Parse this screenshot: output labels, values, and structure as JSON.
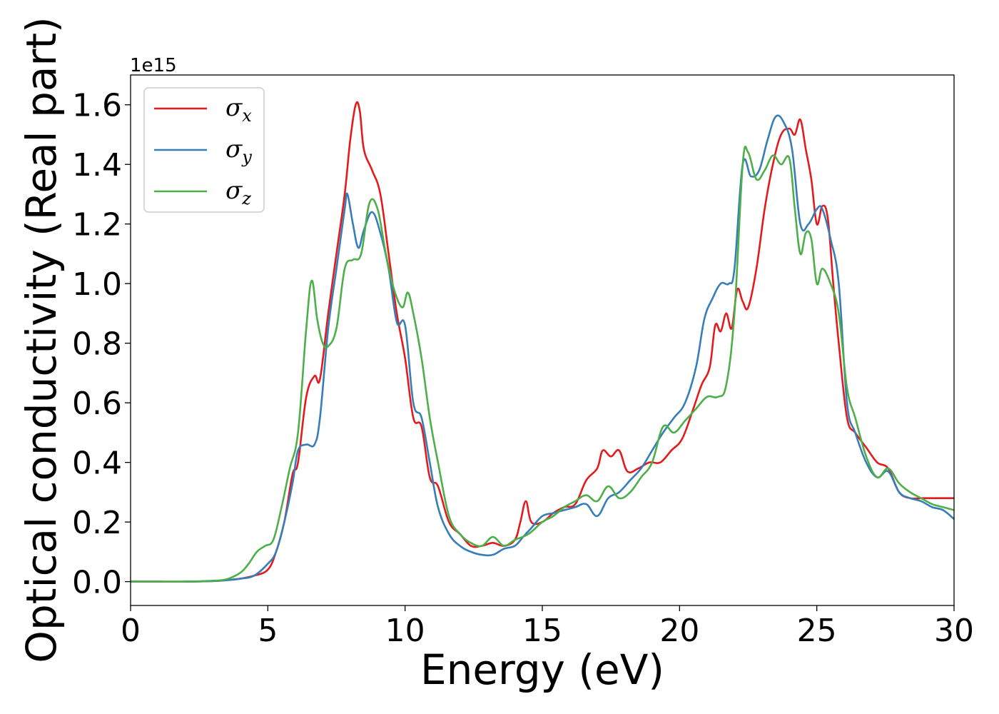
{
  "chart_data": {
    "type": "line",
    "xlabel": "Energy (eV)",
    "ylabel": "Optical conductivity (Real part)",
    "y_offset_label": "1e15",
    "xlim": [
      0,
      30
    ],
    "ylim": [
      -0.08,
      1.7
    ],
    "x_ticks": [
      0,
      5,
      10,
      15,
      20,
      25,
      30
    ],
    "y_ticks": [
      0.0,
      0.2,
      0.4,
      0.6,
      0.8,
      1.0,
      1.2,
      1.4,
      1.6
    ],
    "grid": false,
    "legend_position": "top-left",
    "series": [
      {
        "name": "σx",
        "legend_symbol": "σ",
        "legend_subscript": "x",
        "color": "#e41a1c",
        "x": [
          0,
          1,
          2,
          3,
          3.5,
          4,
          4.5,
          5,
          5.3,
          5.6,
          5.9,
          6.1,
          6.4,
          6.7,
          6.9,
          7.2,
          7.5,
          7.8,
          8.0,
          8.2,
          8.35,
          8.5,
          8.8,
          9.1,
          9.4,
          9.7,
          10.0,
          10.3,
          10.6,
          10.9,
          11.2,
          11.6,
          12.0,
          12.4,
          12.8,
          13.2,
          13.6,
          14.0,
          14.2,
          14.4,
          14.6,
          15.0,
          15.4,
          15.8,
          16.2,
          16.6,
          17.0,
          17.2,
          17.5,
          17.8,
          18.1,
          18.5,
          18.9,
          19.3,
          19.7,
          20.1,
          20.5,
          20.8,
          21.1,
          21.3,
          21.5,
          21.7,
          21.9,
          22.1,
          22.3,
          22.5,
          22.8,
          23.1,
          23.4,
          23.7,
          24.0,
          24.2,
          24.4,
          24.6,
          24.8,
          25.0,
          25.2,
          25.4,
          25.6,
          25.8,
          26.1,
          26.4,
          26.8,
          27.2,
          27.6,
          28.0,
          28.4,
          28.8,
          29.2,
          29.6,
          30.0
        ],
        "y": [
          0.0,
          0.0,
          0.0,
          0.002,
          0.005,
          0.01,
          0.02,
          0.04,
          0.1,
          0.2,
          0.36,
          0.4,
          0.62,
          0.69,
          0.68,
          0.9,
          1.1,
          1.3,
          1.48,
          1.6,
          1.58,
          1.45,
          1.38,
          1.3,
          1.1,
          0.9,
          0.75,
          0.55,
          0.52,
          0.35,
          0.32,
          0.2,
          0.16,
          0.12,
          0.12,
          0.13,
          0.12,
          0.14,
          0.2,
          0.27,
          0.2,
          0.2,
          0.23,
          0.25,
          0.26,
          0.34,
          0.38,
          0.44,
          0.42,
          0.44,
          0.37,
          0.38,
          0.4,
          0.4,
          0.44,
          0.48,
          0.58,
          0.66,
          0.72,
          0.86,
          0.84,
          0.9,
          0.85,
          0.98,
          0.94,
          0.92,
          1.05,
          1.25,
          1.4,
          1.5,
          1.52,
          1.5,
          1.55,
          1.45,
          1.35,
          1.2,
          1.26,
          1.22,
          1.0,
          0.8,
          0.55,
          0.5,
          0.45,
          0.4,
          0.38,
          0.3,
          0.28,
          0.28,
          0.28,
          0.28,
          0.28
        ]
      },
      {
        "name": "σy",
        "legend_symbol": "σ",
        "legend_subscript": "y",
        "color": "#377eb8",
        "x": [
          0,
          1,
          2,
          3,
          3.5,
          4,
          4.5,
          5,
          5.3,
          5.6,
          5.9,
          6.1,
          6.4,
          6.7,
          6.9,
          7.2,
          7.5,
          7.8,
          7.9,
          8.1,
          8.3,
          8.5,
          8.8,
          9.1,
          9.4,
          9.7,
          10.0,
          10.3,
          10.6,
          10.9,
          11.2,
          11.6,
          12.0,
          12.4,
          12.8,
          13.2,
          13.6,
          14.0,
          14.3,
          14.6,
          15.0,
          15.4,
          15.8,
          16.2,
          16.6,
          17.0,
          17.4,
          17.8,
          18.2,
          18.6,
          19.0,
          19.4,
          19.8,
          20.2,
          20.6,
          20.9,
          21.2,
          21.5,
          21.8,
          22.0,
          22.3,
          22.6,
          22.9,
          23.2,
          23.5,
          23.8,
          24.1,
          24.4,
          24.7,
          25.0,
          25.2,
          25.5,
          25.8,
          26.1,
          26.4,
          26.8,
          27.2,
          27.6,
          28.0,
          28.4,
          28.8,
          29.2,
          29.6,
          30.0
        ],
        "y": [
          0.0,
          0.0,
          0.0,
          0.002,
          0.005,
          0.01,
          0.02,
          0.06,
          0.1,
          0.2,
          0.33,
          0.44,
          0.46,
          0.46,
          0.55,
          0.85,
          1.05,
          1.25,
          1.3,
          1.2,
          1.12,
          1.18,
          1.24,
          1.17,
          1.05,
          0.87,
          0.86,
          0.6,
          0.55,
          0.4,
          0.25,
          0.16,
          0.12,
          0.1,
          0.09,
          0.09,
          0.11,
          0.12,
          0.15,
          0.18,
          0.22,
          0.23,
          0.24,
          0.25,
          0.26,
          0.22,
          0.28,
          0.3,
          0.34,
          0.38,
          0.44,
          0.5,
          0.55,
          0.6,
          0.72,
          0.88,
          0.95,
          1.0,
          1.0,
          1.05,
          1.4,
          1.36,
          1.38,
          1.48,
          1.56,
          1.54,
          1.45,
          1.2,
          1.2,
          1.25,
          1.25,
          1.15,
          1.0,
          0.6,
          0.5,
          0.4,
          0.35,
          0.37,
          0.3,
          0.28,
          0.27,
          0.25,
          0.24,
          0.21
        ]
      },
      {
        "name": "σz",
        "legend_symbol": "σ",
        "legend_subscript": "z",
        "color": "#4daf4a",
        "x": [
          0,
          1,
          2,
          3,
          3.5,
          4,
          4.3,
          4.6,
          4.9,
          5.2,
          5.5,
          5.8,
          6.1,
          6.4,
          6.6,
          6.8,
          7.0,
          7.2,
          7.5,
          7.8,
          8.1,
          8.4,
          8.7,
          9.0,
          9.3,
          9.6,
          9.9,
          10.1,
          10.3,
          10.6,
          10.9,
          11.2,
          11.6,
          12.0,
          12.4,
          12.8,
          13.2,
          13.6,
          14.0,
          14.5,
          15.0,
          15.4,
          15.8,
          16.2,
          16.6,
          17.0,
          17.4,
          17.8,
          18.2,
          18.6,
          19.0,
          19.4,
          19.8,
          20.2,
          20.6,
          21.0,
          21.4,
          21.7,
          22.0,
          22.3,
          22.5,
          22.8,
          23.1,
          23.4,
          23.7,
          24.0,
          24.2,
          24.4,
          24.6,
          24.8,
          25.0,
          25.2,
          25.5,
          25.8,
          26.1,
          26.4,
          26.8,
          27.2,
          27.6,
          28.0,
          28.4,
          28.8,
          29.2,
          29.6,
          30.0
        ],
        "y": [
          0.0,
          0.0,
          0.0,
          0.003,
          0.008,
          0.03,
          0.06,
          0.1,
          0.12,
          0.14,
          0.25,
          0.38,
          0.5,
          0.85,
          1.01,
          0.88,
          0.8,
          0.79,
          0.85,
          1.05,
          1.08,
          1.1,
          1.27,
          1.25,
          1.1,
          0.98,
          0.92,
          0.97,
          0.9,
          0.75,
          0.55,
          0.4,
          0.22,
          0.16,
          0.13,
          0.12,
          0.15,
          0.12,
          0.14,
          0.16,
          0.2,
          0.22,
          0.25,
          0.27,
          0.29,
          0.27,
          0.32,
          0.28,
          0.3,
          0.35,
          0.4,
          0.52,
          0.5,
          0.54,
          0.58,
          0.62,
          0.62,
          0.66,
          0.9,
          1.4,
          1.44,
          1.35,
          1.38,
          1.43,
          1.4,
          1.42,
          1.25,
          1.1,
          1.17,
          1.15,
          1.0,
          1.05,
          1.0,
          0.9,
          0.65,
          0.55,
          0.42,
          0.35,
          0.38,
          0.33,
          0.3,
          0.28,
          0.26,
          0.25,
          0.24
        ]
      }
    ]
  }
}
